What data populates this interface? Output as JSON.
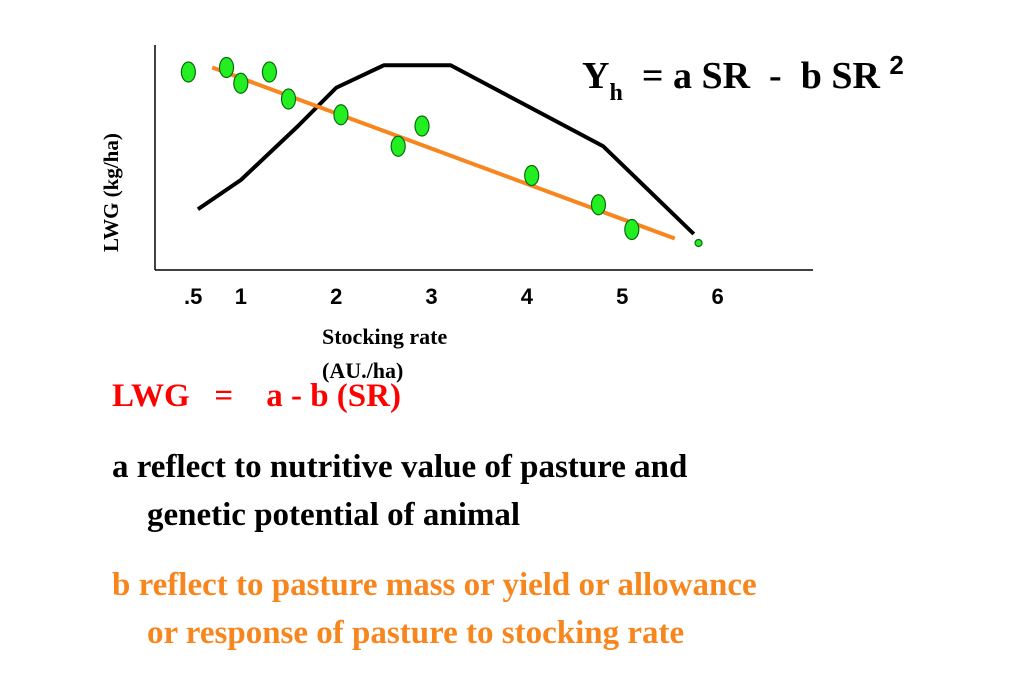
{
  "equation": {
    "main": "Y",
    "subscript": "h",
    "rest": "  = a SR  -  b SR ",
    "superscript": "2"
  },
  "chart_data": {
    "type": "scatter",
    "ylabel": "LWG (kg/ha)",
    "xlabel_lines": [
      "Stocking rate",
      "(AU./ha)"
    ],
    "x_ticks": [
      ".5",
      "1",
      "2",
      "3",
      "4",
      "5",
      "6"
    ],
    "x_tick_values": [
      0.5,
      1,
      2,
      3,
      4,
      5,
      6
    ],
    "xlim": [
      0.1,
      7.0
    ],
    "ylim": [
      0,
      10
    ],
    "grid": false,
    "colors": {
      "points": "#22ee22",
      "trend": "#f7861e",
      "curve": "#000000"
    },
    "series": [
      {
        "type": "scatter",
        "x": [
          0.45,
          0.85,
          1.0,
          1.3,
          1.5,
          2.05,
          2.65,
          2.9,
          4.05,
          4.75,
          5.1,
          5.8
        ],
        "y": [
          8.8,
          9.0,
          8.3,
          8.8,
          7.6,
          6.9,
          5.5,
          6.4,
          4.2,
          2.9,
          1.8,
          1.2
        ]
      },
      {
        "type": "line",
        "x": [
          0.7,
          5.55
        ],
        "y": [
          9.0,
          1.4
        ]
      },
      {
        "type": "line",
        "x": [
          0.55,
          1.0,
          1.6,
          2.0,
          2.5,
          3.2,
          4.0,
          4.8,
          5.75
        ],
        "y": [
          2.7,
          4.0,
          6.4,
          8.1,
          9.1,
          9.1,
          7.3,
          5.5,
          1.6
        ]
      }
    ]
  },
  "texts": {
    "lwg_equation": "LWG   =    a - b (SR)",
    "a_line1": "a reflect to nutritive value of pasture and",
    "a_line2": "genetic potential of animal",
    "b_line1": "b reflect to pasture mass or yield or allowance",
    "b_line2": "or response of pasture to stocking rate"
  }
}
